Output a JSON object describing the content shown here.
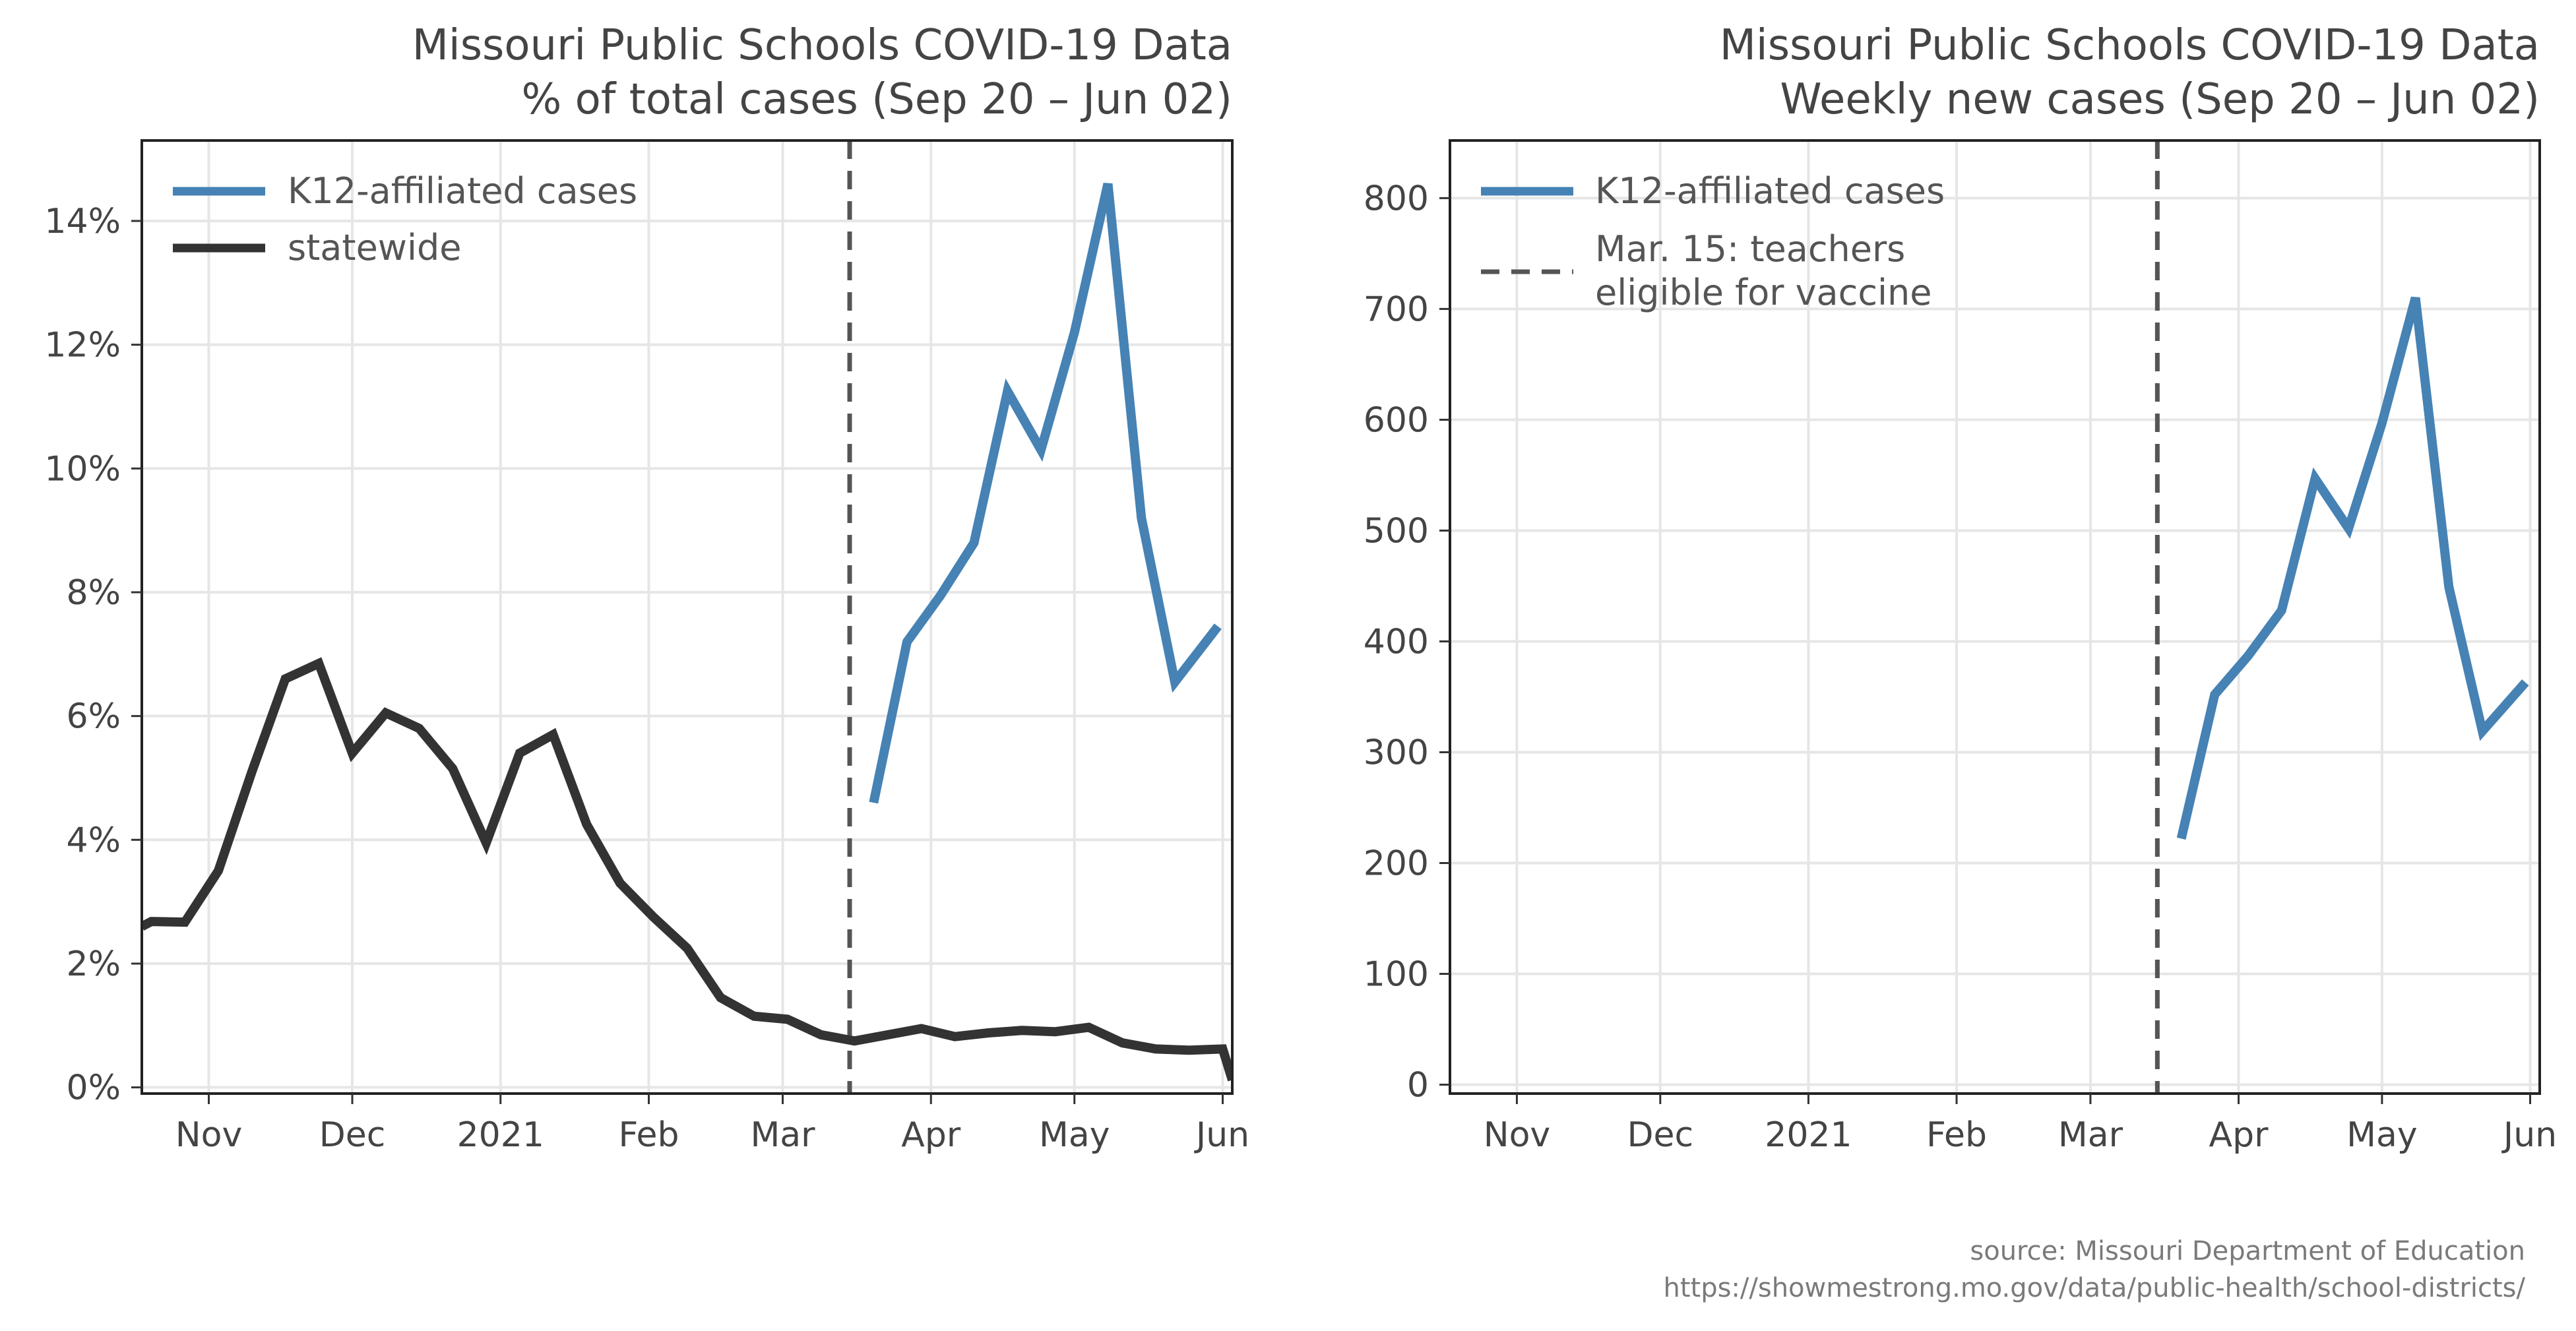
{
  "colors": {
    "k12": "#4682b4",
    "statewide": "#333333",
    "vline": "#555555",
    "grid": "#e6e6e6",
    "text": "#444444"
  },
  "source": {
    "line1": "source: Missouri Department of Education",
    "line2": "https://showmestrong.mo.gov/data/public-health/school-districts/"
  },
  "chart_data": [
    {
      "type": "line",
      "title": "Missouri Public Schools COVID-19 Data",
      "subtitle": "% of total cases (Sep 20 – Jun 02)",
      "xlabel": "",
      "ylabel": "",
      "xlim": [
        "2020-10-18",
        "2021-06-03"
      ],
      "ylim": [
        -0.1,
        15.3
      ],
      "yticks": [
        0,
        2,
        4,
        6,
        8,
        10,
        12,
        14
      ],
      "ytick_labels": [
        "0%",
        "2%",
        "4%",
        "6%",
        "8%",
        "10%",
        "12%",
        "14%"
      ],
      "xticks": [
        "2020-11-01",
        "2020-12-01",
        "2021-01-01",
        "2021-02-01",
        "2021-03-01",
        "2021-04-01",
        "2021-05-01",
        "2021-06-01"
      ],
      "xtick_labels": [
        "Nov",
        "Dec",
        "2021",
        "Feb",
        "Mar",
        "Apr",
        "May",
        "Jun"
      ],
      "grid": true,
      "legend": "top-left",
      "vline": "2021-03-15",
      "series": [
        {
          "name": "K12-affiliated cases",
          "color": "#4682b4",
          "points": [
            [
              "2021-03-20",
              4.6
            ],
            [
              "2021-03-27",
              7.2
            ],
            [
              "2021-04-03",
              7.95
            ],
            [
              "2021-04-10",
              8.8
            ],
            [
              "2021-04-17",
              11.25
            ],
            [
              "2021-04-24",
              10.3
            ],
            [
              "2021-05-01",
              12.2
            ],
            [
              "2021-05-08",
              14.6
            ],
            [
              "2021-05-15",
              9.2
            ],
            [
              "2021-05-22",
              6.55
            ],
            [
              "2021-05-31",
              7.45
            ]
          ]
        },
        {
          "name": "statewide",
          "color": "#333333",
          "points": [
            [
              "2020-10-18",
              2.6
            ],
            [
              "2020-10-20",
              2.68
            ],
            [
              "2020-10-27",
              2.67
            ],
            [
              "2020-11-03",
              3.5
            ],
            [
              "2020-11-10",
              5.1
            ],
            [
              "2020-11-17",
              6.6
            ],
            [
              "2020-11-24",
              6.85
            ],
            [
              "2020-12-01",
              5.4
            ],
            [
              "2020-12-08",
              6.05
            ],
            [
              "2020-12-15",
              5.8
            ],
            [
              "2020-12-22",
              5.15
            ],
            [
              "2020-12-29",
              3.95
            ],
            [
              "2021-01-05",
              5.4
            ],
            [
              "2021-01-12",
              5.7
            ],
            [
              "2021-01-19",
              4.25
            ],
            [
              "2021-01-26",
              3.3
            ],
            [
              "2021-02-02",
              2.75
            ],
            [
              "2021-02-09",
              2.25
            ],
            [
              "2021-02-16",
              1.45
            ],
            [
              "2021-02-23",
              1.15
            ],
            [
              "2021-03-02",
              1.1
            ],
            [
              "2021-03-09",
              0.85
            ],
            [
              "2021-03-16",
              0.75
            ],
            [
              "2021-03-23",
              0.85
            ],
            [
              "2021-03-30",
              0.95
            ],
            [
              "2021-04-06",
              0.82
            ],
            [
              "2021-04-13",
              0.88
            ],
            [
              "2021-04-20",
              0.92
            ],
            [
              "2021-04-27",
              0.9
            ],
            [
              "2021-05-04",
              0.97
            ],
            [
              "2021-05-11",
              0.72
            ],
            [
              "2021-05-18",
              0.62
            ],
            [
              "2021-05-25",
              0.6
            ],
            [
              "2021-06-01",
              0.62
            ],
            [
              "2021-06-03",
              0.12
            ]
          ]
        }
      ],
      "legend_entries": [
        {
          "label": "K12-affiliated cases",
          "color": "#4682b4",
          "style": "solid"
        },
        {
          "label": "statewide",
          "color": "#333333",
          "style": "solid"
        }
      ]
    },
    {
      "type": "line",
      "title": "Missouri Public Schools COVID-19 Data",
      "subtitle": "Weekly new cases (Sep 20 – Jun 02)",
      "xlabel": "",
      "ylabel": "",
      "xlim": [
        "2020-10-18",
        "2021-06-03"
      ],
      "ylim": [
        -8,
        852
      ],
      "yticks": [
        0,
        100,
        200,
        300,
        400,
        500,
        600,
        700,
        800
      ],
      "ytick_labels": [
        "0",
        "100",
        "200",
        "300",
        "400",
        "500",
        "600",
        "700",
        "800"
      ],
      "xticks": [
        "2020-11-01",
        "2020-12-01",
        "2021-01-01",
        "2021-02-01",
        "2021-03-01",
        "2021-04-01",
        "2021-05-01",
        "2021-06-01"
      ],
      "xtick_labels": [
        "Nov",
        "Dec",
        "2021",
        "Feb",
        "Mar",
        "Apr",
        "May",
        "Jun"
      ],
      "grid": true,
      "legend": "top-left",
      "vline": "2021-03-15",
      "series": [
        {
          "name": "K12-affiliated cases",
          "color": "#4682b4",
          "points": [
            [
              "2021-03-20",
              222
            ],
            [
              "2021-03-27",
              352
            ],
            [
              "2021-04-03",
              387
            ],
            [
              "2021-04-10",
              428
            ],
            [
              "2021-04-17",
              547
            ],
            [
              "2021-04-24",
              502
            ],
            [
              "2021-05-01",
              597
            ],
            [
              "2021-05-08",
              710
            ],
            [
              "2021-05-15",
              449
            ],
            [
              "2021-05-22",
              319
            ],
            [
              "2021-05-31",
              363
            ]
          ]
        }
      ],
      "legend_entries": [
        {
          "label": "K12-affiliated cases",
          "color": "#4682b4",
          "style": "solid"
        },
        {
          "label": "Mar. 15: teachers",
          "label2": "eligible for vaccine",
          "color": "#555555",
          "style": "dashed"
        }
      ]
    }
  ]
}
